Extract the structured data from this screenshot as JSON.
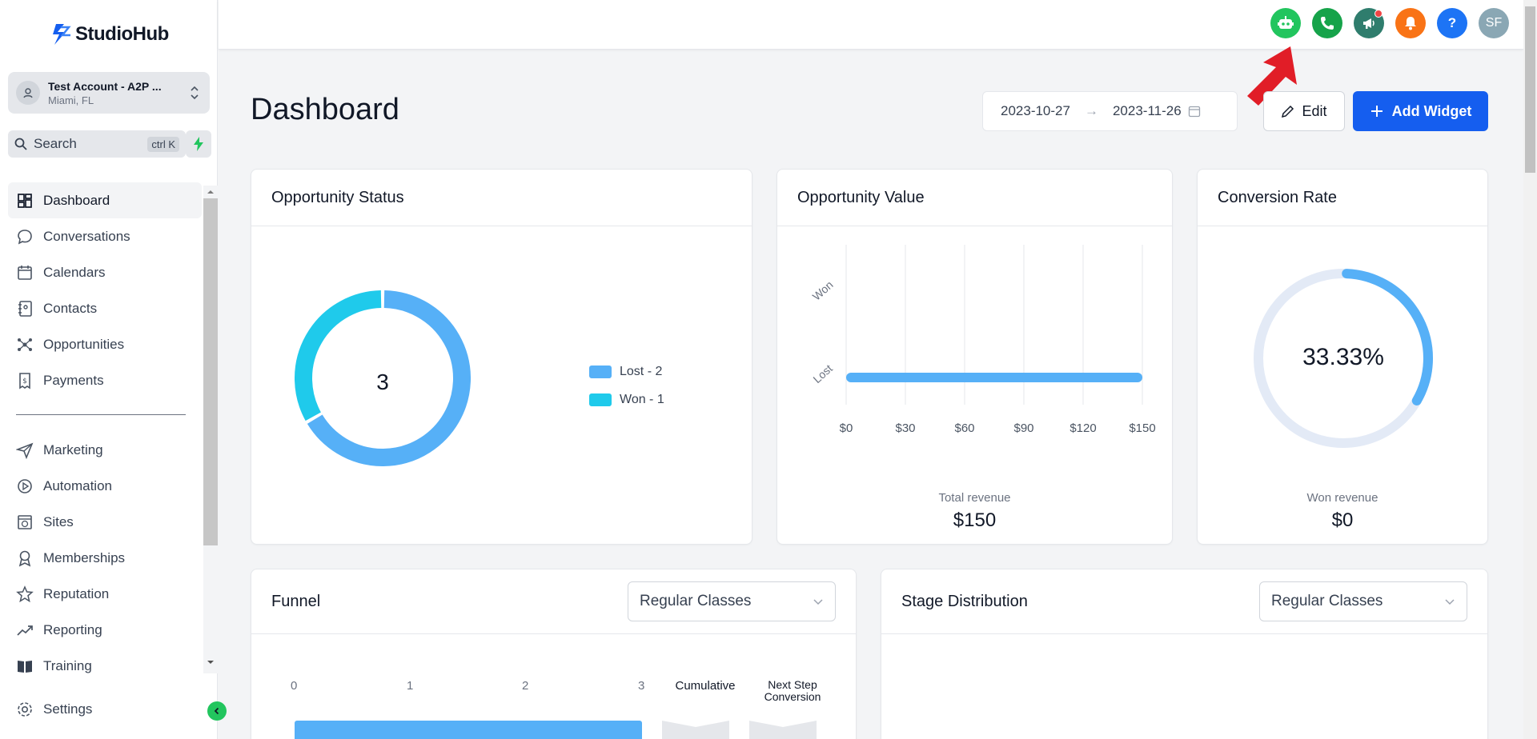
{
  "app": {
    "name": "StudioHub"
  },
  "account": {
    "name": "Test Account - A2P ...",
    "location": "Miami, FL"
  },
  "search": {
    "label": "Search",
    "shortcut": "ctrl K"
  },
  "nav": {
    "primary": [
      {
        "label": "Dashboard",
        "icon": "grid-icon",
        "active": true
      },
      {
        "label": "Conversations",
        "icon": "chat-icon"
      },
      {
        "label": "Calendars",
        "icon": "calendar-icon"
      },
      {
        "label": "Contacts",
        "icon": "contact-book-icon"
      },
      {
        "label": "Opportunities",
        "icon": "network-icon"
      },
      {
        "label": "Payments",
        "icon": "receipt-icon"
      }
    ],
    "secondary": [
      {
        "label": "Marketing",
        "icon": "send-icon"
      },
      {
        "label": "Automation",
        "icon": "play-circle-icon"
      },
      {
        "label": "Sites",
        "icon": "globe-window-icon"
      },
      {
        "label": "Memberships",
        "icon": "award-icon"
      },
      {
        "label": "Reputation",
        "icon": "star-icon"
      },
      {
        "label": "Reporting",
        "icon": "trend-up-icon"
      },
      {
        "label": "Training",
        "icon": "book-icon"
      }
    ],
    "settings": {
      "label": "Settings",
      "icon": "gear-icon"
    }
  },
  "topbar": {
    "icons": [
      {
        "name": "ai-bot-icon",
        "color": "#22c55e"
      },
      {
        "name": "phone-icon",
        "color": "#16a34a"
      },
      {
        "name": "megaphone-icon",
        "color": "#2f7d6d"
      },
      {
        "name": "bell-icon",
        "color": "#f97316"
      },
      {
        "name": "help-icon",
        "color": "#1d74f5"
      }
    ],
    "avatar": {
      "initials": "SF",
      "color": "#8aa7b4"
    }
  },
  "page": {
    "title": "Dashboard",
    "date_start": "2023-10-27",
    "date_end": "2023-11-26",
    "edit_label": "Edit",
    "add_widget_label": "Add Widget"
  },
  "widgets": {
    "opportunity_status": {
      "title": "Opportunity Status",
      "total": "3",
      "legend": [
        "Lost - 2",
        "Won - 1"
      ]
    },
    "opportunity_value": {
      "title": "Opportunity Value",
      "caption": "Total revenue",
      "value": "$150"
    },
    "conversion_rate": {
      "title": "Conversion Rate",
      "percent_label": "33.33%",
      "caption": "Won revenue",
      "value": "$0"
    },
    "funnel": {
      "title": "Funnel",
      "select_value": "Regular Classes",
      "col_cumulative": "Cumulative",
      "col_next": "Next Step Conversion",
      "axis_ticks": [
        "0",
        "1",
        "2",
        "3"
      ]
    },
    "stage_distribution": {
      "title": "Stage Distribution",
      "select_value": "Regular Classes"
    }
  },
  "chart_data": [
    {
      "type": "pie",
      "title": "Opportunity Status",
      "categories": [
        "Lost",
        "Won"
      ],
      "values": [
        2,
        1
      ],
      "colors": [
        "#56b0f7",
        "#1fcaeb"
      ]
    },
    {
      "type": "bar",
      "title": "Opportunity Value",
      "orientation": "horizontal",
      "categories": [
        "Won",
        "Lost"
      ],
      "values": [
        0,
        150
      ],
      "xticks": [
        "$0",
        "$30",
        "$60",
        "$90",
        "$120",
        "$150"
      ],
      "xlim": [
        0,
        150
      ],
      "grid": true,
      "color": "#56b0f7"
    },
    {
      "type": "pie",
      "title": "Conversion Rate",
      "values": [
        33.33,
        66.67
      ],
      "colors": [
        "#56b0f7",
        "#e3eaf6"
      ]
    }
  ]
}
